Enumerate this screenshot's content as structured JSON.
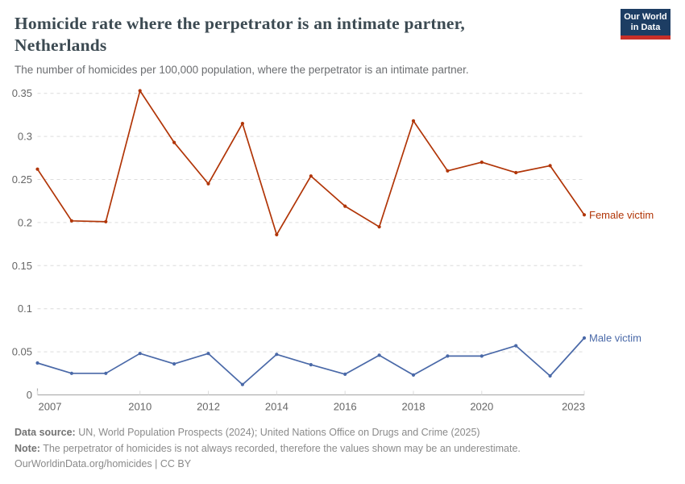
{
  "header": {
    "title_line1": "Homicide rate where the perpetrator is an intimate partner,",
    "title_line2": "Netherlands",
    "subtitle": "The number of homicides per 100,000 population, where the perpetrator is an intimate partner.",
    "title_color": "#3c4a52",
    "logo": {
      "line1": "Our World",
      "line2": "in Data",
      "bg_color": "#1d3d63",
      "accent_color": "#c82f28"
    }
  },
  "chart_data": {
    "type": "line",
    "title": "Homicide rate where the perpetrator is an intimate partner, Netherlands",
    "subtitle": "The number of homicides per 100,000 population, where the perpetrator is an intimate partner.",
    "xlabel": "",
    "ylabel": "",
    "x": [
      2007,
      2008,
      2009,
      2010,
      2011,
      2012,
      2013,
      2014,
      2015,
      2016,
      2017,
      2018,
      2019,
      2020,
      2021,
      2022,
      2023
    ],
    "series": [
      {
        "name": "Female victim",
        "color": "#b13507",
        "values": [
          0.262,
          0.202,
          0.201,
          0.353,
          0.293,
          0.245,
          0.315,
          0.186,
          0.254,
          0.219,
          0.195,
          0.318,
          0.26,
          0.27,
          0.258,
          0.266,
          0.209
        ]
      },
      {
        "name": "Male victim",
        "color": "#4a69a8",
        "values": [
          0.037,
          0.025,
          0.025,
          0.048,
          0.036,
          0.048,
          0.012,
          0.047,
          0.035,
          0.024,
          0.046,
          0.023,
          0.045,
          0.045,
          0.057,
          0.022,
          0.066
        ]
      }
    ],
    "xlim": [
      2007,
      2023
    ],
    "ylim": [
      0,
      0.35
    ],
    "yticks": [
      0,
      0.05,
      0.1,
      0.15,
      0.2,
      0.25,
      0.3,
      0.35
    ],
    "ytick_labels": [
      "0",
      "0.05",
      "0.1",
      "0.15",
      "0.2",
      "0.25",
      "0.3",
      "0.35"
    ],
    "xticks": [
      2007,
      2010,
      2012,
      2014,
      2016,
      2018,
      2020,
      2023
    ],
    "grid": "horizontal dashed",
    "legend_position": "end-of-line labels",
    "gridline_color": "#dcdcdc",
    "axis_line_color": "#b0b0b0",
    "tick_label_color": "#666666"
  },
  "footer": {
    "datasource_label": "Data source:",
    "datasource_text": " UN, World Population Prospects (2024); United Nations Office on Drugs and Crime (2025)",
    "note_label": "Note:",
    "note_text": " The perpetrator of homicides is not always recorded, therefore the values shown may be an underestimate.",
    "link_text": "OurWorldinData.org/homicides | CC BY"
  }
}
